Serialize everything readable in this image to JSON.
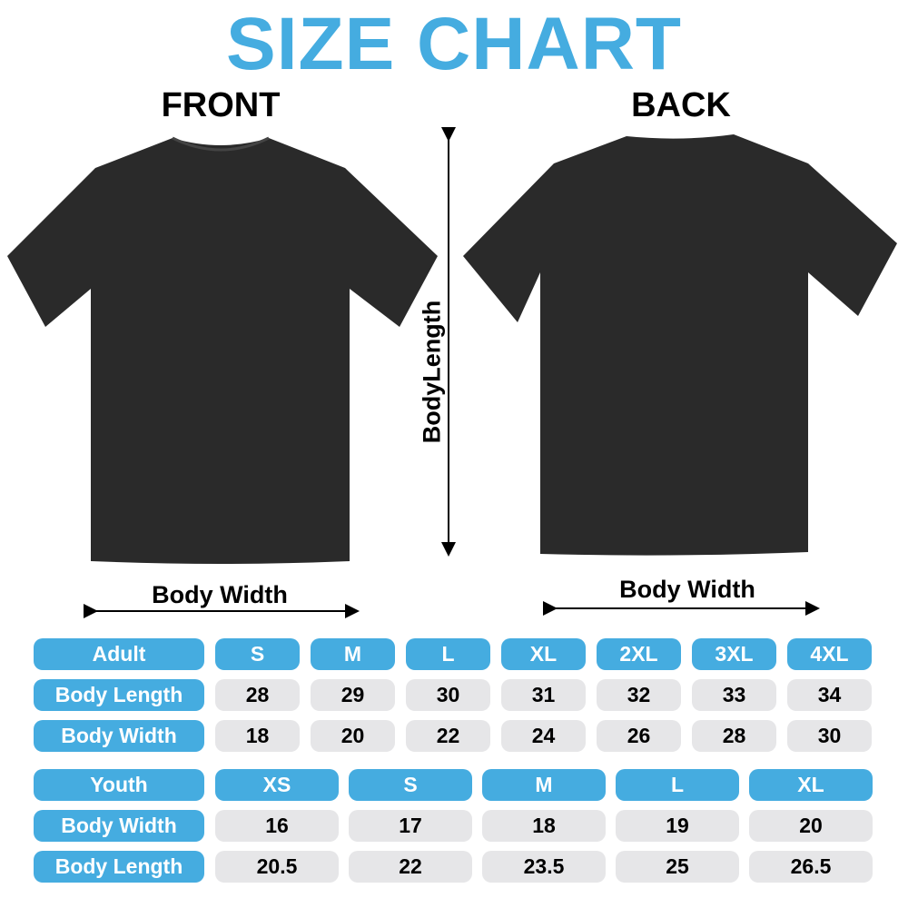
{
  "title": "SIZE CHART",
  "front_label": "FRONT",
  "back_label": "BACK",
  "body_length_label": "BodyLength",
  "front_width_label": "Body Width",
  "back_width_label": "Body Width",
  "colors": {
    "accent": "#45ace0",
    "cell": "#e6e6e8",
    "shirt": "#2a2a2a"
  },
  "adult": {
    "header": "Adult",
    "sizes": [
      "S",
      "M",
      "L",
      "XL",
      "2XL",
      "3XL",
      "4XL"
    ],
    "rows": [
      {
        "label": "Body Length",
        "values": [
          "28",
          "29",
          "30",
          "31",
          "32",
          "33",
          "34"
        ]
      },
      {
        "label": "Body Width",
        "values": [
          "18",
          "20",
          "22",
          "24",
          "26",
          "28",
          "30"
        ]
      }
    ]
  },
  "youth": {
    "header": "Youth",
    "sizes": [
      "XS",
      "S",
      "M",
      "L",
      "XL"
    ],
    "rows": [
      {
        "label": "Body Width",
        "values": [
          "16",
          "17",
          "18",
          "19",
          "20"
        ]
      },
      {
        "label": "Body Length",
        "values": [
          "20.5",
          "22",
          "23.5",
          "25",
          "26.5"
        ]
      }
    ]
  }
}
